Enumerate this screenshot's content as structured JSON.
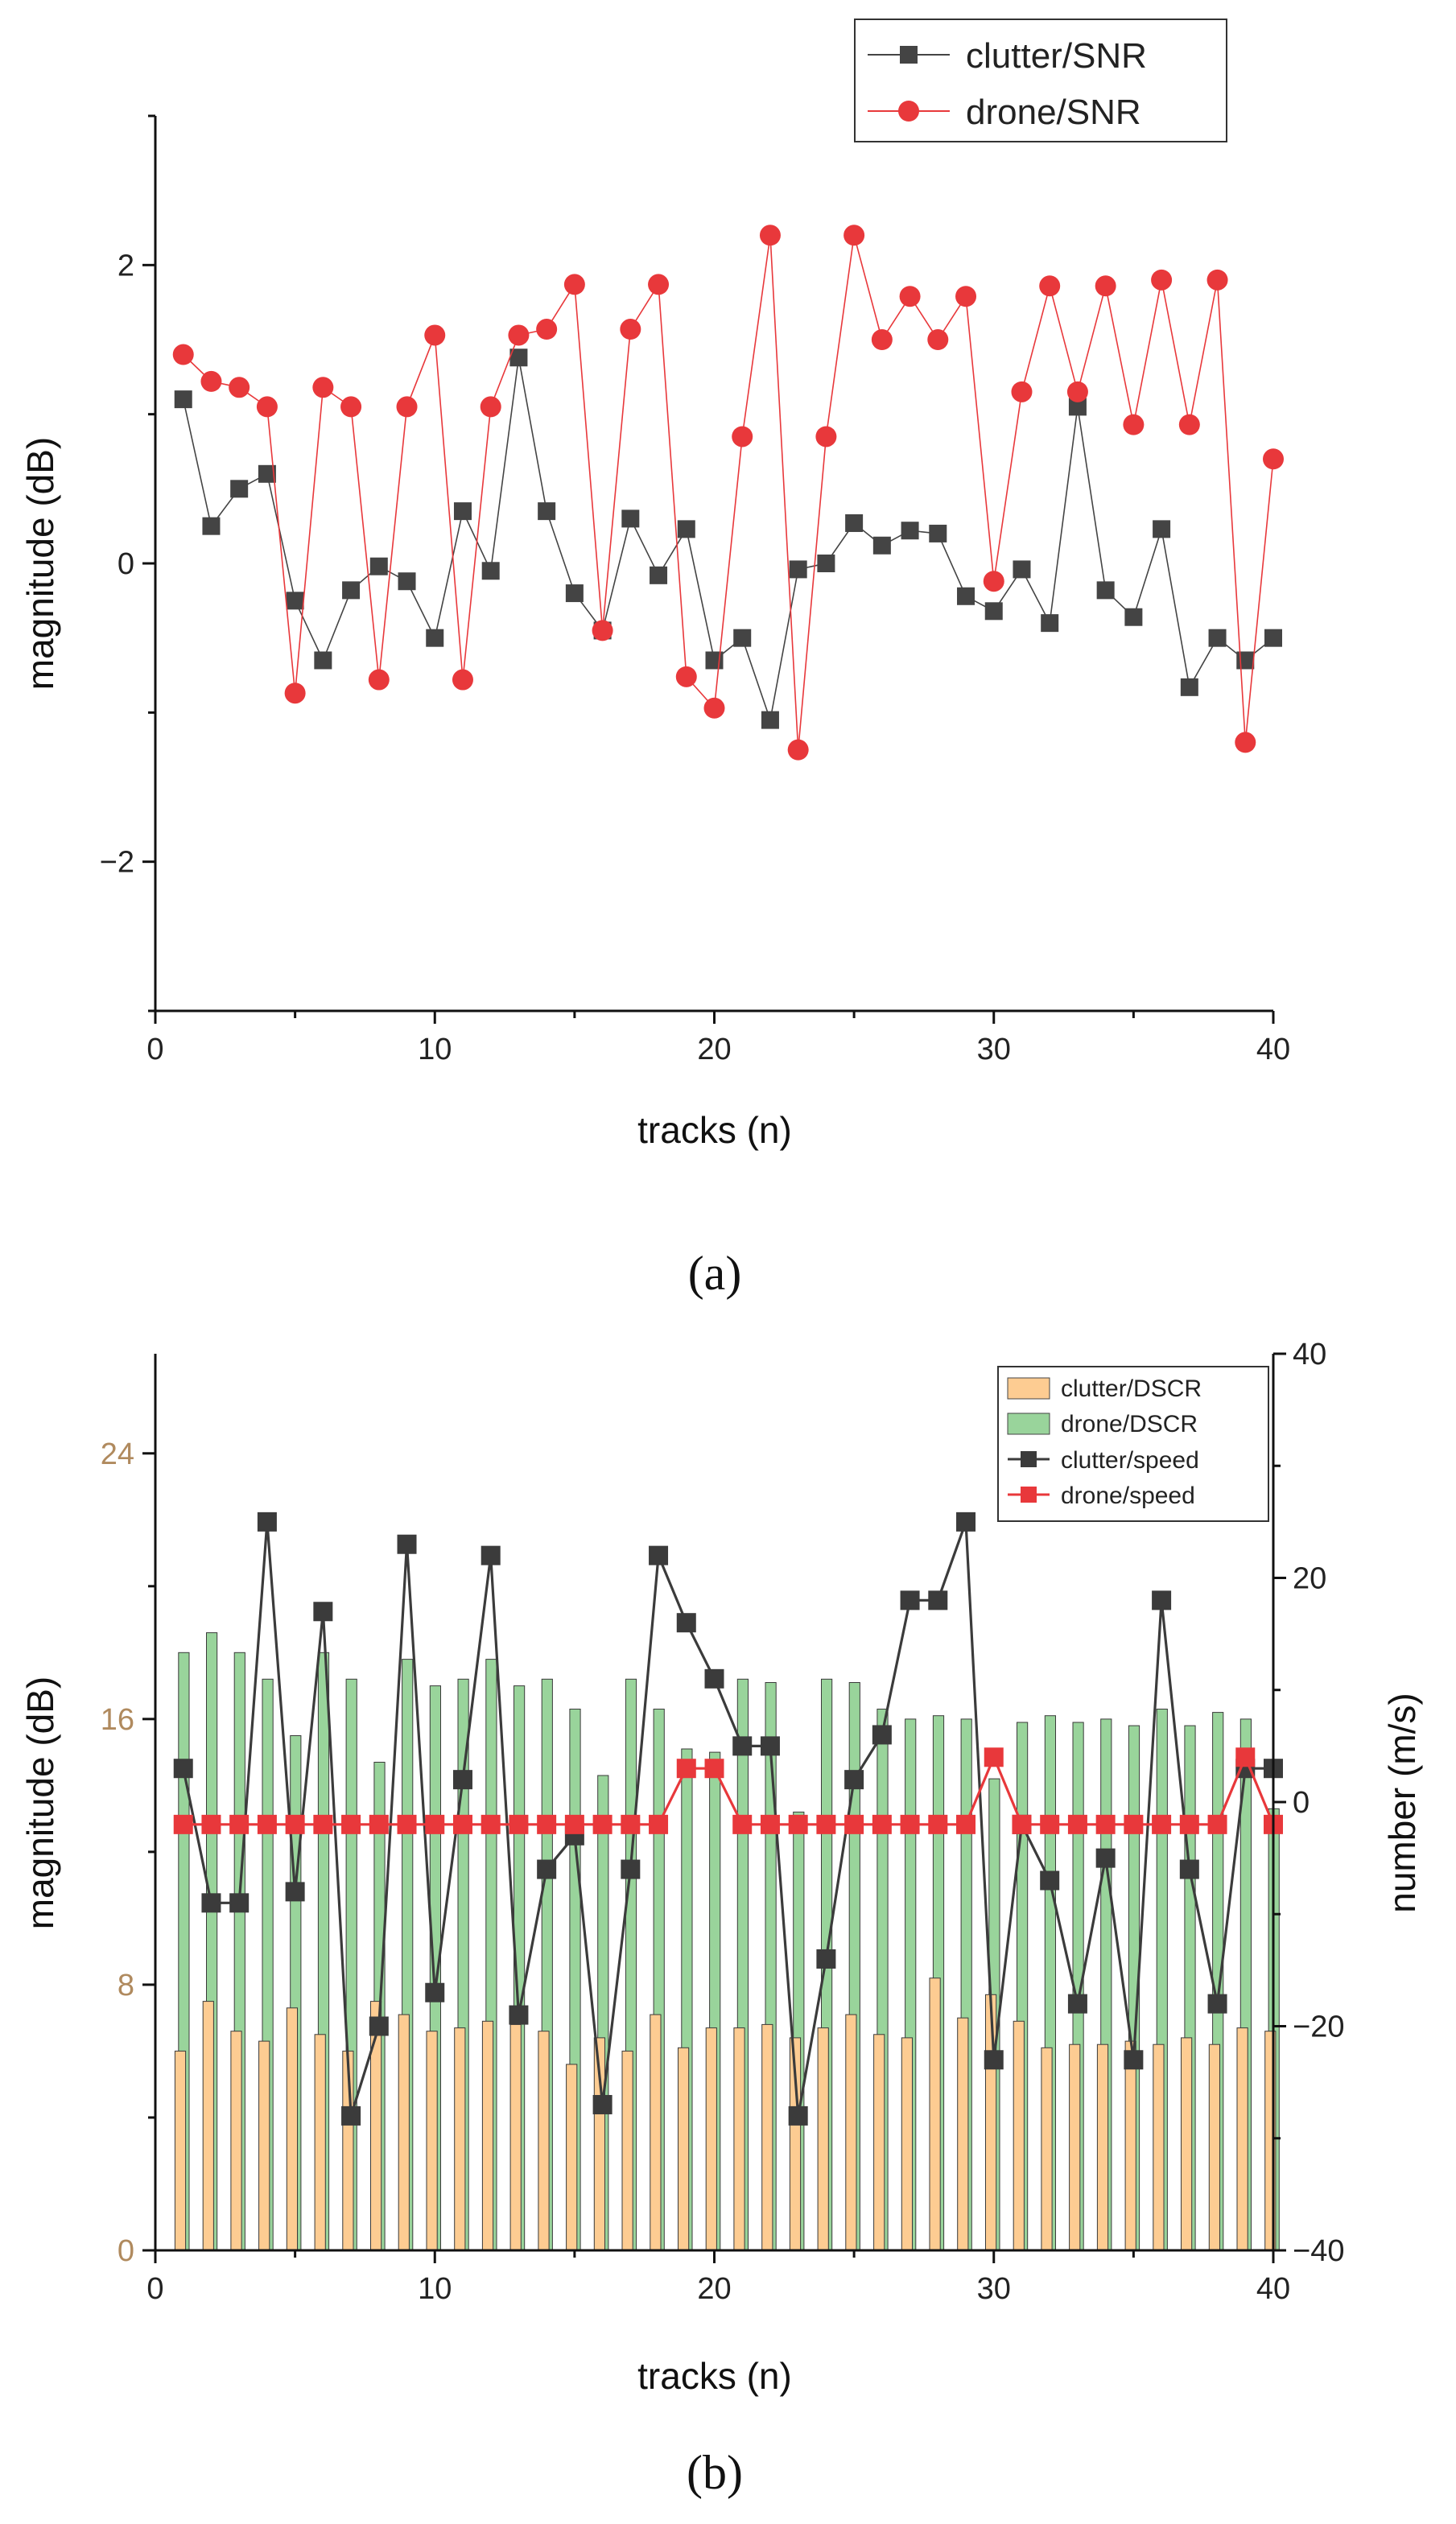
{
  "chart_data": [
    {
      "type": "line",
      "panel_label": "(a)",
      "xlabel": "tracks (n)",
      "ylabel": "magnitude (dB)",
      "xlim": [
        0,
        40
      ],
      "ylim": [
        -3,
        3
      ],
      "xticks": [
        0,
        10,
        20,
        30,
        40
      ],
      "yticks": [
        -2,
        0,
        2
      ],
      "ytick_labels": [
        "−2",
        "0",
        "2"
      ],
      "grid": false,
      "legend_position": "top-right",
      "x": [
        1,
        2,
        3,
        4,
        5,
        6,
        7,
        8,
        9,
        10,
        11,
        12,
        13,
        14,
        15,
        16,
        17,
        18,
        19,
        20,
        21,
        22,
        23,
        24,
        25,
        26,
        27,
        28,
        29,
        30,
        31,
        32,
        33,
        34,
        35,
        36,
        37,
        38,
        39,
        40
      ],
      "series": [
        {
          "name": "clutter/SNR",
          "color": "#444444",
          "marker": "square",
          "values": [
            1.1,
            0.25,
            0.5,
            0.6,
            -0.25,
            -0.65,
            -0.18,
            -0.02,
            -0.12,
            -0.5,
            0.35,
            -0.05,
            1.38,
            0.35,
            -0.2,
            -0.45,
            0.3,
            -0.08,
            0.23,
            -0.65,
            -0.5,
            -1.05,
            -0.04,
            0.0,
            0.27,
            0.12,
            0.22,
            0.2,
            -0.22,
            -0.32,
            -0.04,
            -0.4,
            1.05,
            -0.18,
            -0.36,
            0.23,
            -0.83,
            -0.5,
            -0.65,
            -0.5
          ]
        },
        {
          "name": "drone/SNR",
          "color": "#e8383b",
          "marker": "circle",
          "values": [
            1.4,
            1.22,
            1.18,
            1.05,
            -0.87,
            1.18,
            1.05,
            -0.78,
            1.05,
            1.53,
            -0.78,
            1.05,
            1.53,
            1.57,
            1.87,
            -0.45,
            1.57,
            1.87,
            -0.76,
            -0.97,
            0.85,
            2.2,
            -1.25,
            0.85,
            2.2,
            1.5,
            1.79,
            1.5,
            1.79,
            -0.12,
            1.15,
            1.86,
            1.15,
            1.86,
            0.93,
            1.9,
            0.93,
            1.9,
            -1.2,
            0.7
          ]
        }
      ]
    },
    {
      "type": "bar",
      "panel_label": "(b)",
      "xlabel": "tracks (n)",
      "ylabel": "magnitude (dB)",
      "y2label": "number (m/s)",
      "xlim": [
        0,
        40
      ],
      "ylim": [
        0,
        27
      ],
      "y2lim": [
        -40,
        40
      ],
      "xticks": [
        0,
        10,
        20,
        30,
        40
      ],
      "yticks": [
        0,
        8,
        16,
        24
      ],
      "y2ticks": [
        -40,
        -20,
        0,
        20,
        40
      ],
      "y2tick_labels": [
        "−40",
        "−20",
        "0",
        "20",
        "40"
      ],
      "grid": false,
      "legend_position": "top-right",
      "x": [
        1,
        2,
        3,
        4,
        5,
        6,
        7,
        8,
        9,
        10,
        11,
        12,
        13,
        14,
        15,
        16,
        17,
        18,
        19,
        20,
        21,
        22,
        23,
        24,
        25,
        26,
        27,
        28,
        29,
        30,
        31,
        32,
        33,
        34,
        35,
        36,
        37,
        38,
        39,
        40
      ],
      "bars": [
        {
          "name": "clutter/DSCR",
          "color": "#fdcc92",
          "values": [
            6.0,
            7.5,
            6.6,
            6.3,
            7.3,
            6.5,
            6.0,
            7.5,
            7.1,
            6.6,
            6.7,
            6.9,
            6.8,
            6.6,
            5.6,
            6.4,
            6.0,
            7.1,
            6.1,
            6.7,
            6.7,
            6.8,
            6.4,
            6.7,
            7.1,
            6.5,
            6.4,
            8.2,
            7.0,
            7.7,
            6.9,
            6.1,
            6.2,
            6.2,
            6.3,
            6.2,
            6.4,
            6.2,
            6.7,
            6.6
          ]
        },
        {
          "name": "drone/DSCR",
          "color": "#99d49b",
          "values": [
            18.0,
            18.6,
            18.0,
            17.2,
            15.5,
            18.0,
            17.2,
            14.7,
            17.8,
            17.0,
            17.2,
            17.8,
            17.0,
            17.2,
            16.3,
            14.3,
            17.2,
            16.3,
            15.1,
            15.0,
            17.2,
            17.1,
            13.2,
            17.2,
            17.1,
            16.3,
            16.0,
            16.1,
            16.0,
            14.2,
            15.9,
            16.1,
            15.9,
            16.0,
            15.8,
            16.3,
            15.8,
            16.2,
            16.0,
            13.3
          ]
        }
      ],
      "series": [
        {
          "name": "clutter/speed",
          "color": "#3b3b3b",
          "marker": "square",
          "axis": "right",
          "values": [
            3,
            -9,
            -9,
            25,
            -8,
            17,
            -28,
            -20,
            23,
            -17,
            2,
            22,
            -19,
            -6,
            -3,
            -27,
            -6,
            22,
            16,
            11,
            5,
            5,
            -28,
            -14,
            2,
            6,
            18,
            18,
            25,
            -23,
            -2,
            -7,
            -18,
            -5,
            -23,
            18,
            -6,
            -18,
            3,
            3
          ]
        },
        {
          "name": "drone/speed",
          "color": "#e8383b",
          "marker": "square",
          "axis": "right",
          "values": [
            -2,
            -2,
            -2,
            -2,
            -2,
            -2,
            -2,
            -2,
            -2,
            -2,
            -2,
            -2,
            -2,
            -2,
            -2,
            -2,
            -2,
            -2,
            3,
            3,
            -2,
            -2,
            -2,
            -2,
            -2,
            -2,
            -2,
            -2,
            -2,
            4,
            -2,
            -2,
            -2,
            -2,
            -2,
            -2,
            -2,
            -2,
            4,
            -2
          ]
        }
      ]
    }
  ]
}
